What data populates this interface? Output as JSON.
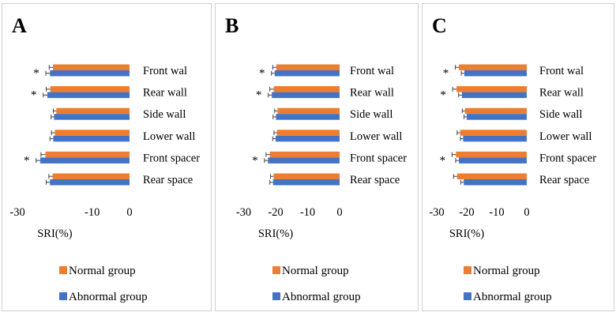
{
  "colors": {
    "normal": "#ED7D31",
    "abnormal": "#4472C4",
    "error": "#404040",
    "text": "#000000",
    "border": "#d0d0d0"
  },
  "chart_data": [
    {
      "panel_label": "A",
      "type": "bar",
      "orientation": "horizontal",
      "xlabel": "SRI(%)",
      "xlim": [
        -30,
        0
      ],
      "xticks": [
        -30,
        -10,
        0
      ],
      "categories": [
        "Front wal",
        "Rear wall",
        "Side wall",
        "Lower wall",
        "Front spacer",
        "Rear space"
      ],
      "series": [
        {
          "name": "Normal group",
          "values": [
            -20.5,
            -21.2,
            -19.6,
            -20.0,
            -22.5,
            -20.6
          ],
          "errors": [
            1.0,
            1.1,
            0.8,
            0.9,
            1.2,
            1.0
          ]
        },
        {
          "name": "Abnormal group",
          "values": [
            -21.3,
            -22.0,
            -20.2,
            -20.4,
            -23.9,
            -21.3
          ],
          "errors": [
            1.1,
            1.1,
            0.8,
            0.9,
            1.1,
            1.0
          ]
        }
      ],
      "significance": [
        "*",
        "*",
        "",
        "",
        "*",
        ""
      ]
    },
    {
      "panel_label": "B",
      "type": "bar",
      "orientation": "horizontal",
      "xlabel": "SRI(%)",
      "xlim": [
        -30,
        0
      ],
      "xticks": [
        -30,
        -20,
        -10,
        0
      ],
      "categories": [
        "Front wal",
        "Rear wall",
        "Side wall",
        "Lower wall",
        "Front spacer",
        "Rear space"
      ],
      "series": [
        {
          "name": "Normal group",
          "values": [
            -19.8,
            -20.6,
            -19.4,
            -19.6,
            -21.8,
            -20.6
          ],
          "errors": [
            1.1,
            1.2,
            0.9,
            0.9,
            1.2,
            1.0
          ]
        },
        {
          "name": "Abnormal group",
          "values": [
            -20.3,
            -21.2,
            -19.9,
            -20.0,
            -22.4,
            -20.8
          ],
          "errors": [
            1.0,
            1.1,
            0.9,
            0.9,
            1.1,
            1.0
          ]
        }
      ],
      "significance": [
        "*",
        "*",
        "",
        "",
        "*",
        ""
      ]
    },
    {
      "panel_label": "C",
      "type": "bar",
      "orientation": "horizontal",
      "xlabel": "SRI(%)",
      "xlim": [
        -30,
        0
      ],
      "xticks": [
        -30,
        -20,
        -10,
        0
      ],
      "categories": [
        "Front wal",
        "Rear wall",
        "Side wall",
        "Lower wall",
        "Front spacer",
        "Rear space"
      ],
      "series": [
        {
          "name": "Normal group",
          "values": [
            -22.6,
            -23.4,
            -20.6,
            -22.2,
            -23.6,
            -23.2
          ],
          "errors": [
            1.2,
            1.3,
            0.9,
            1.0,
            1.3,
            1.2
          ]
        },
        {
          "name": "Abnormal group",
          "values": [
            -20.8,
            -21.6,
            -20.0,
            -21.2,
            -22.6,
            -21.0
          ],
          "errors": [
            1.0,
            1.1,
            0.9,
            0.9,
            1.1,
            1.0
          ]
        }
      ],
      "significance": [
        "*",
        "*",
        "",
        "",
        "*",
        ""
      ]
    }
  ]
}
